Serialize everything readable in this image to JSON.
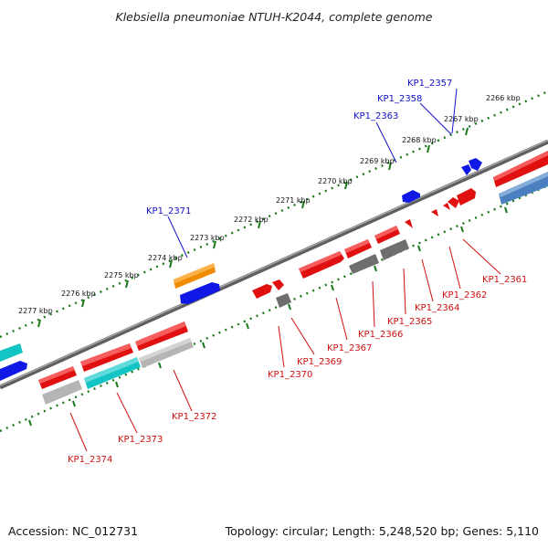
{
  "title": "Klebsiella pneumoniae NTUH-K2044, complete genome",
  "accession": "Accession: NC_012731",
  "topology": "Topology: circular; Length: 5,248,520 bp; Genes: 5,110",
  "colors": {
    "label_top": "#1010c8",
    "label_bottom": "#d01010",
    "tick": "#1a7a1a",
    "backbone": "#7a7a7a",
    "red": "#e01010",
    "blue": "#1018e6",
    "orange": "#f08a00",
    "cyan": "#12c4c4",
    "steelblue": "#4a7fc0",
    "gray": "#7a7a7a",
    "lightgray": "#bdbdbd"
  },
  "scale_labels": [
    "2266 kbp",
    "2267 kbp",
    "2268 kbp",
    "2269 kbp",
    "2270 kbp",
    "2271 kbp",
    "2272 kbp",
    "2273 kbp",
    "2274 kbp",
    "2275 kbp",
    "2276 kbp",
    "2277 kbp"
  ],
  "top_labels": [
    "KP1_2357",
    "KP1_2358",
    "KP1_2363",
    "KP1_2371"
  ],
  "bottom_labels": [
    "KP1_2361",
    "KP1_2362",
    "KP1_2364",
    "KP1_2365",
    "KP1_2366",
    "KP1_2367",
    "KP1_2369",
    "KP1_2370",
    "KP1_2372",
    "KP1_2373",
    "KP1_2374"
  ]
}
